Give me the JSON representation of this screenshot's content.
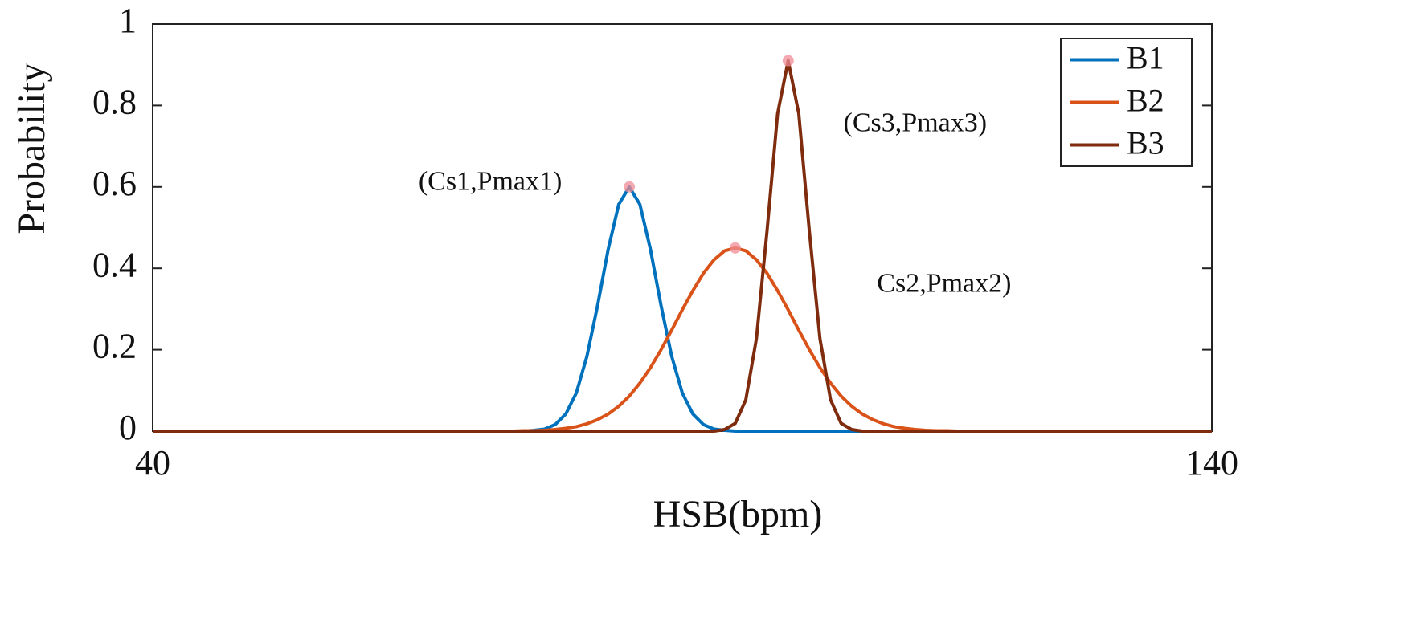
{
  "chart_data": {
    "type": "line",
    "xlabel": "HSB(bpm)",
    "ylabel": "Probability",
    "x": [
      40,
      50,
      60,
      70,
      72,
      73,
      74,
      75,
      76,
      77,
      78,
      79,
      80,
      81,
      82,
      83,
      84,
      85,
      86,
      87,
      88,
      89,
      90,
      91,
      92,
      93,
      94,
      95,
      96,
      97,
      98,
      99,
      100,
      101,
      102,
      103,
      104,
      105,
      106,
      107,
      108,
      109,
      110,
      111,
      112,
      113,
      114,
      115,
      116,
      117,
      118,
      120,
      130,
      140
    ],
    "series": [
      {
        "name": "B1",
        "color": "#0072bd",
        "values": [
          0,
          0,
          0,
          0,
          0,
          0,
          0,
          0,
          0.002,
          0.005,
          0.016,
          0.042,
          0.094,
          0.184,
          0.308,
          0.446,
          0.557,
          0.6,
          0.557,
          0.446,
          0.308,
          0.184,
          0.094,
          0.042,
          0.016,
          0.005,
          0.002,
          0,
          0,
          0,
          0,
          0,
          0,
          0,
          0,
          0,
          0,
          0,
          0,
          0,
          0,
          0,
          0,
          0,
          0,
          0,
          0,
          0,
          0,
          0,
          0,
          0,
          0,
          0
        ]
      },
      {
        "name": "B2",
        "color": "#d95319",
        "values": [
          0,
          0,
          0,
          0,
          0,
          0,
          0,
          0.001,
          0.001,
          0.002,
          0.004,
          0.007,
          0.011,
          0.018,
          0.028,
          0.042,
          0.061,
          0.086,
          0.118,
          0.156,
          0.2,
          0.248,
          0.298,
          0.345,
          0.388,
          0.421,
          0.443,
          0.45,
          0.443,
          0.421,
          0.388,
          0.345,
          0.298,
          0.248,
          0.2,
          0.156,
          0.118,
          0.086,
          0.061,
          0.042,
          0.028,
          0.018,
          0.011,
          0.007,
          0.004,
          0.002,
          0.001,
          0.001,
          0,
          0,
          0,
          0,
          0,
          0
        ]
      },
      {
        "name": "B3",
        "color": "#7e2b0e",
        "values": [
          0,
          0,
          0,
          0,
          0,
          0,
          0,
          0,
          0,
          0,
          0,
          0,
          0,
          0,
          0,
          0,
          0,
          0,
          0,
          0,
          0,
          0,
          0,
          0,
          0,
          0,
          0.004,
          0.019,
          0.077,
          0.227,
          0.491,
          0.78,
          0.91,
          0.78,
          0.491,
          0.227,
          0.077,
          0.019,
          0.004,
          0,
          0,
          0,
          0,
          0,
          0,
          0,
          0,
          0,
          0,
          0,
          0,
          0,
          0,
          0
        ]
      }
    ],
    "annotations": [
      {
        "text": "(Cs1,Pmax1)",
        "x": 85,
        "y": 0.6
      },
      {
        "text": "Cs2,Pmax2)",
        "x": 95,
        "y": 0.45
      },
      {
        "text": "(Cs3,Pmax3)",
        "x": 100,
        "y": 0.91
      }
    ],
    "annotation_marker_color": "#f08c96",
    "xlim": [
      40,
      140
    ],
    "xticks": [
      40,
      140
    ],
    "ylim": [
      0,
      1
    ],
    "yticks": [
      0,
      0.2,
      0.4,
      0.6,
      0.8,
      1
    ],
    "grid": false,
    "legend": "upper right"
  }
}
